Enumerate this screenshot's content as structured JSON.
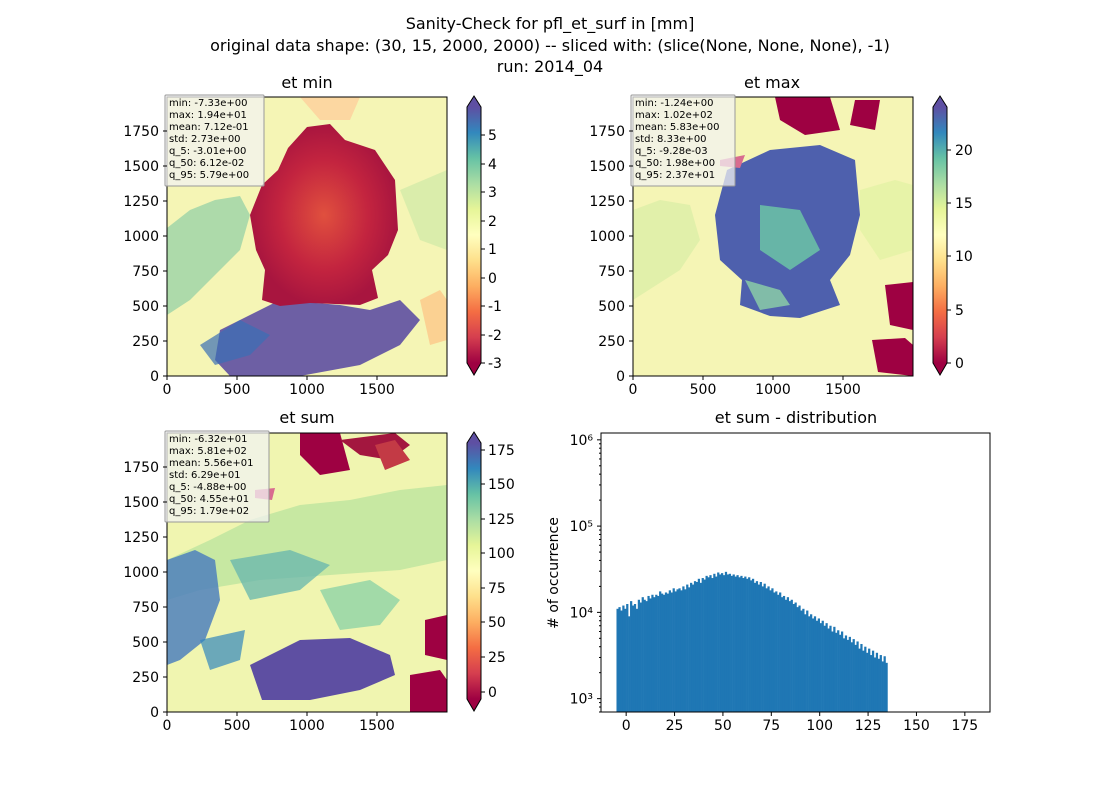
{
  "figure": {
    "title_lines": [
      "Sanity-Check for pfl_et_surf in [mm]",
      "original data shape: (30, 15, 2000, 2000) -- sliced with: (slice(None, None, None), -1)",
      "run: 2014_04"
    ]
  },
  "chart_data": [
    {
      "type": "heatmap",
      "id": "et-min",
      "title": "et min",
      "xlim": [
        0,
        2000
      ],
      "ylim": [
        0,
        2000
      ],
      "x_ticks": [
        0,
        500,
        1000,
        1500
      ],
      "y_ticks": [
        0,
        250,
        500,
        750,
        1000,
        1250,
        1500,
        1750
      ],
      "colormap": "Spectral",
      "colorbar": {
        "min": -3,
        "max": 6,
        "ticks": [
          -3,
          -2,
          -1,
          0,
          1,
          2,
          3,
          4,
          5
        ],
        "extend": "both"
      },
      "stats": [
        "min: -7.33e+00",
        "max: 1.94e+01",
        "mean: 7.12e-01",
        "std: 2.73e+00",
        "q_5: -3.01e+00",
        "q_50: 6.12e-02",
        "q_95: 5.79e+00"
      ]
    },
    {
      "type": "heatmap",
      "id": "et-max",
      "title": "et max",
      "xlim": [
        0,
        2000
      ],
      "ylim": [
        0,
        2000
      ],
      "x_ticks": [
        0,
        500,
        1000,
        1500
      ],
      "y_ticks": [
        0,
        250,
        500,
        750,
        1000,
        1250,
        1500,
        1750
      ],
      "colormap": "Spectral",
      "colorbar": {
        "min": 0,
        "max": 24,
        "ticks": [
          0,
          5,
          10,
          15,
          20
        ],
        "extend": "both"
      },
      "stats": [
        "min: -1.24e+00",
        "max: 1.02e+02",
        "mean: 5.83e+00",
        "std: 8.33e+00",
        "q_5: -9.28e-03",
        "q_50: 1.98e+00",
        "q_95: 2.37e+01"
      ]
    },
    {
      "type": "heatmap",
      "id": "et-sum",
      "title": "et sum",
      "xlim": [
        0,
        2000
      ],
      "ylim": [
        0,
        2000
      ],
      "x_ticks": [
        0,
        500,
        1000,
        1500
      ],
      "y_ticks": [
        0,
        250,
        500,
        750,
        1000,
        1250,
        1500,
        1750
      ],
      "colormap": "Spectral",
      "colorbar": {
        "min": -10,
        "max": 185,
        "ticks": [
          0,
          25,
          50,
          75,
          100,
          125,
          150,
          175
        ],
        "extend": "both"
      },
      "stats": [
        "min: -6.32e+01",
        "max: 5.81e+02",
        "mean: 5.56e+01",
        "std: 6.29e+01",
        "q_5: -4.88e+00",
        "q_50: 4.55e+01",
        "q_95: 1.79e+02"
      ]
    },
    {
      "type": "bar",
      "id": "et-sum-distribution",
      "title": "et sum - distribution",
      "ylabel": "# of occurrence",
      "yscale": "log",
      "xlim": [
        -13,
        188
      ],
      "ylim": [
        700,
        1200000
      ],
      "x_ticks": [
        0,
        25,
        50,
        75,
        100,
        125,
        150,
        175
      ],
      "y_ticks": [
        {
          "value": 1000,
          "label": "10³"
        },
        {
          "value": 10000,
          "label": "10⁴"
        },
        {
          "value": 100000,
          "label": "10⁵"
        },
        {
          "value": 1000000,
          "label": "10⁶"
        }
      ],
      "color": "#1f77b4",
      "bin_width": 1,
      "bins_start": -5,
      "values": [
        11000,
        11500,
        10500,
        12000,
        11000,
        12500,
        9000,
        13500,
        12000,
        12500,
        11000,
        14000,
        13000,
        15000,
        14000,
        13500,
        15500,
        14500,
        16000,
        15000,
        16000,
        15500,
        17500,
        16500,
        16000,
        17000,
        16500,
        18000,
        17000,
        19000,
        17500,
        18500,
        19000,
        18000,
        20000,
        18500,
        21000,
        19500,
        22000,
        21000,
        23000,
        22500,
        24500,
        22000,
        25000,
        24000,
        26500,
        25500,
        27000,
        25000,
        28000,
        26000,
        29000,
        27500,
        28500,
        27000,
        29500,
        27500,
        28000,
        26500,
        27500,
        26000,
        27000,
        25500,
        26500,
        25000,
        26000,
        24500,
        25500,
        23500,
        24500,
        22000,
        23000,
        21000,
        22500,
        20000,
        21500,
        19000,
        20000,
        18000,
        19000,
        17000,
        17500,
        16000,
        17000,
        15000,
        15500,
        14000,
        15000,
        13500,
        14000,
        12500,
        13000,
        11500,
        12000,
        10500,
        11000,
        9500,
        10500,
        9000,
        9500,
        8500,
        9000,
        8000,
        8500,
        7500,
        8000,
        7000,
        7500,
        6500,
        7000,
        6000,
        6800,
        5800,
        6200,
        5500,
        6000,
        5000,
        5400,
        4800,
        5200,
        4500,
        4900,
        4200,
        4600,
        3800,
        4300,
        3600,
        4000,
        3400,
        3800,
        3200,
        3600,
        3000,
        3400,
        2900,
        3200,
        2700,
        3100,
        2600
      ]
    }
  ]
}
